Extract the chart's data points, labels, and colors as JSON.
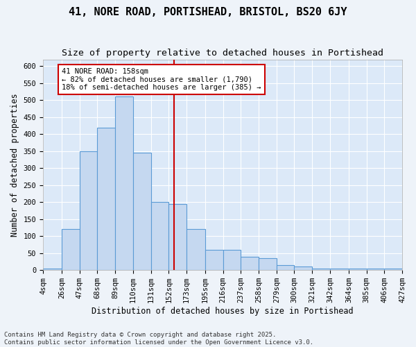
{
  "title": "41, NORE ROAD, PORTISHEAD, BRISTOL, BS20 6JY",
  "subtitle": "Size of property relative to detached houses in Portishead",
  "xlabel": "Distribution of detached houses by size in Portishead",
  "ylabel": "Number of detached properties",
  "bin_labels": [
    "4sqm",
    "26sqm",
    "47sqm",
    "68sqm",
    "89sqm",
    "110sqm",
    "131sqm",
    "152sqm",
    "173sqm",
    "195sqm",
    "216sqm",
    "237sqm",
    "258sqm",
    "279sqm",
    "300sqm",
    "321sqm",
    "342sqm",
    "364sqm",
    "385sqm",
    "406sqm",
    "427sqm"
  ],
  "bin_edges": [
    4,
    26,
    47,
    68,
    89,
    110,
    131,
    152,
    173,
    195,
    216,
    237,
    258,
    279,
    300,
    321,
    342,
    364,
    385,
    406,
    427
  ],
  "bar_heights": [
    5,
    120,
    350,
    420,
    510,
    345,
    200,
    195,
    120,
    60,
    60,
    40,
    35,
    15,
    10,
    5,
    5,
    5,
    5,
    5
  ],
  "bar_color": "#c5d8f0",
  "bar_edge_color": "#5b9bd5",
  "vline_x": 158,
  "vline_color": "#cc0000",
  "annotation_text": "41 NORE ROAD: 158sqm\n← 82% of detached houses are smaller (1,790)\n18% of semi-detached houses are larger (385) →",
  "annotation_box_color": "#cc0000",
  "annotation_text_color": "#000000",
  "ylim": [
    0,
    620
  ],
  "yticks": [
    0,
    50,
    100,
    150,
    200,
    250,
    300,
    350,
    400,
    450,
    500,
    550,
    600
  ],
  "fig_background_color": "#eef3f9",
  "plot_background": "#dce9f8",
  "footer_line1": "Contains HM Land Registry data © Crown copyright and database right 2025.",
  "footer_line2": "Contains public sector information licensed under the Open Government Licence v3.0.",
  "title_fontsize": 11,
  "subtitle_fontsize": 9.5,
  "xlabel_fontsize": 8.5,
  "ylabel_fontsize": 8.5,
  "tick_fontsize": 7.5,
  "footer_fontsize": 6.5
}
